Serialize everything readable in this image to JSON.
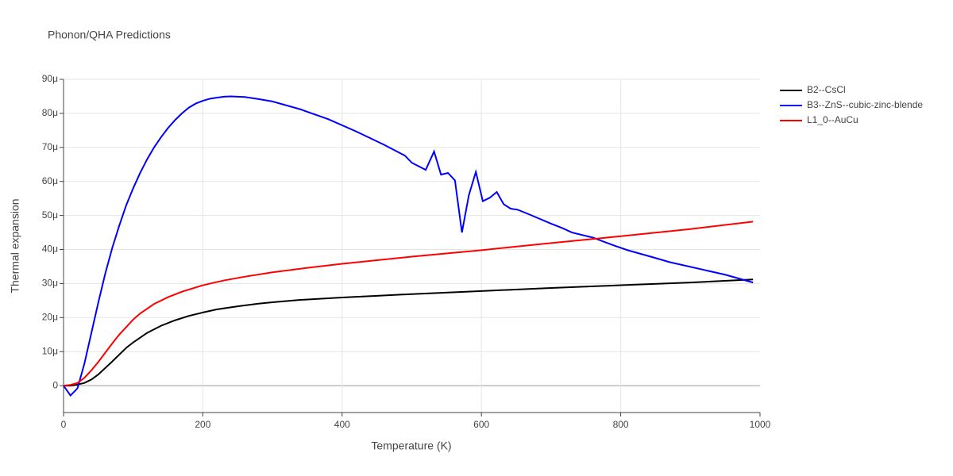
{
  "chart_data": {
    "type": "line",
    "title": "Phonon/QHA Predictions",
    "x_label": "Temperature (K)",
    "y_label": "Thermal expansion",
    "xlim": [
      0,
      1000
    ],
    "xticks": [
      0,
      200,
      400,
      600,
      800,
      1000
    ],
    "ylim": [
      -7.9,
      90
    ],
    "yticks": [
      0,
      {
        "value": 10,
        "label": "10μ"
      },
      {
        "value": 20,
        "label": "20μ"
      },
      {
        "value": 30,
        "label": "30μ"
      },
      {
        "value": 40,
        "label": "40μ"
      },
      {
        "value": 50,
        "label": "50μ"
      },
      {
        "value": 60,
        "label": "60μ"
      },
      {
        "value": 70,
        "label": "70μ"
      },
      {
        "value": 80,
        "label": "80μ"
      },
      {
        "value": 90,
        "label": "90μ"
      }
    ],
    "grid": true,
    "series": [
      {
        "name": "B2--CsCl",
        "color": "#000000",
        "x": [
          0,
          10,
          20,
          30,
          40,
          50,
          60,
          70,
          80,
          90,
          100,
          120,
          140,
          160,
          180,
          200,
          220,
          250,
          280,
          300,
          340,
          400,
          450,
          500,
          600,
          700,
          800,
          900,
          990
        ],
        "values": [
          0,
          0,
          0.3,
          0.8,
          1.8,
          3.3,
          5.2,
          7.1,
          9.1,
          11.1,
          12.7,
          15.5,
          17.6,
          19.2,
          20.5,
          21.5,
          22.4,
          23.3,
          24.1,
          24.5,
          25.2,
          25.9,
          26.4,
          26.9,
          27.8,
          28.7,
          29.5,
          30.3,
          31.2
        ]
      },
      {
        "name": "B3--ZnS--cubic-zinc-blende",
        "color": "#0000ff",
        "x": [
          0,
          10,
          20,
          30,
          40,
          50,
          60,
          70,
          80,
          90,
          100,
          110,
          120,
          130,
          140,
          150,
          160,
          170,
          180,
          190,
          200,
          210,
          220,
          230,
          240,
          260,
          280,
          300,
          340,
          380,
          420,
          460,
          490,
          500,
          520,
          532,
          542,
          552,
          562,
          572,
          582,
          592,
          602,
          612,
          622,
          632,
          642,
          652,
          670,
          700,
          715,
          730,
          760,
          790,
          810,
          850,
          870,
          950,
          990
        ],
        "values": [
          0,
          -2.9,
          -0.8,
          6.5,
          15.5,
          24.5,
          33,
          40.5,
          47,
          53,
          58,
          62.5,
          66.5,
          70,
          73,
          75.7,
          78,
          80,
          81.7,
          82.9,
          83.7,
          84.3,
          84.6,
          84.9,
          85,
          84.8,
          84.2,
          83.5,
          81.2,
          78.3,
          74.7,
          70.8,
          67.6,
          65.5,
          63.4,
          68.8,
          62,
          62.5,
          60.3,
          45,
          56,
          62.8,
          54.2,
          55.2,
          56.9,
          53.3,
          52,
          51.7,
          50.2,
          47.6,
          46.4,
          45,
          43.5,
          41.2,
          39.8,
          37.5,
          36.3,
          32.6,
          30.3
        ]
      },
      {
        "name": "L1_0--AuCu",
        "color": "#ff0000",
        "x": [
          0,
          10,
          20,
          30,
          40,
          50,
          60,
          70,
          80,
          90,
          100,
          110,
          130,
          150,
          170,
          200,
          230,
          260,
          300,
          350,
          400,
          500,
          600,
          700,
          800,
          900,
          990
        ],
        "values": [
          0,
          0.2,
          0.8,
          2.3,
          4.5,
          7,
          9.7,
          12.4,
          15,
          17.2,
          19.4,
          21.2,
          24,
          26,
          27.6,
          29.5,
          30.9,
          32,
          33.3,
          34.6,
          35.8,
          37.9,
          39.8,
          41.9,
          43.9,
          46,
          48.2
        ]
      }
    ]
  }
}
